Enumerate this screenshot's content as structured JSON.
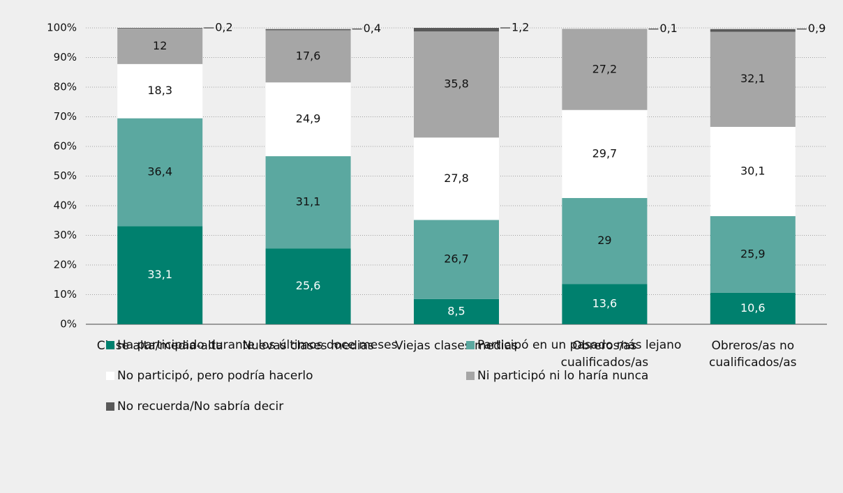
{
  "chart_data": {
    "type": "bar",
    "stacked": true,
    "categories": [
      "Clase alta/media-alta",
      "Nuevas clases medias",
      "Viejas clases medias",
      "Obreros/as cualificados/as",
      "Obreros/as no cualificados/as"
    ],
    "series": [
      {
        "name": "Ha participado durante los últimos doce meses",
        "color": "#00806e",
        "values": [
          33.1,
          25.6,
          8.5,
          13.6,
          10.6
        ],
        "value_labels": [
          "33,1",
          "25,6",
          "8,5",
          "13,6",
          "10,6"
        ]
      },
      {
        "name": "Participó en un pasado más lejano",
        "color": "#5ba8a0",
        "values": [
          36.4,
          31.1,
          26.7,
          29,
          25.9
        ],
        "value_labels": [
          "36,4",
          "31,1",
          "26,7",
          "29",
          "25,9"
        ]
      },
      {
        "name": "No participó, pero podría hacerlo",
        "color": "#ffffff",
        "values": [
          18.3,
          24.9,
          27.8,
          29.7,
          30.1
        ],
        "value_labels": [
          "18,3",
          "24,9",
          "27,8",
          "29,7",
          "30,1"
        ]
      },
      {
        "name": "Ni participó ni lo haría nunca",
        "color": "#a6a6a6",
        "values": [
          12,
          17.6,
          35.8,
          27.2,
          32.1
        ],
        "value_labels": [
          "12",
          "17,6",
          "35,8",
          "27,2",
          "32,1"
        ]
      },
      {
        "name": "No recuerda/No sabría decir",
        "color": "#595959",
        "values": [
          0.2,
          0.4,
          1.2,
          0.1,
          0.9
        ],
        "value_labels": [
          "0,2",
          "0,4",
          "1,2",
          "0,1",
          "0,9"
        ]
      }
    ],
    "ylim": [
      0,
      100
    ],
    "yticks": [
      {
        "value": 0,
        "label": "0%"
      },
      {
        "value": 10,
        "label": "10%"
      },
      {
        "value": 20,
        "label": "20%"
      },
      {
        "value": 30,
        "label": "30%"
      },
      {
        "value": 40,
        "label": "40%"
      },
      {
        "value": 50,
        "label": "50%"
      },
      {
        "value": 60,
        "label": "60%"
      },
      {
        "value": 70,
        "label": "70%"
      },
      {
        "value": 80,
        "label": "80%"
      },
      {
        "value": 90,
        "label": "90%"
      },
      {
        "value": 100,
        "label": "100%"
      }
    ],
    "grid": true,
    "legend": "bottom"
  }
}
